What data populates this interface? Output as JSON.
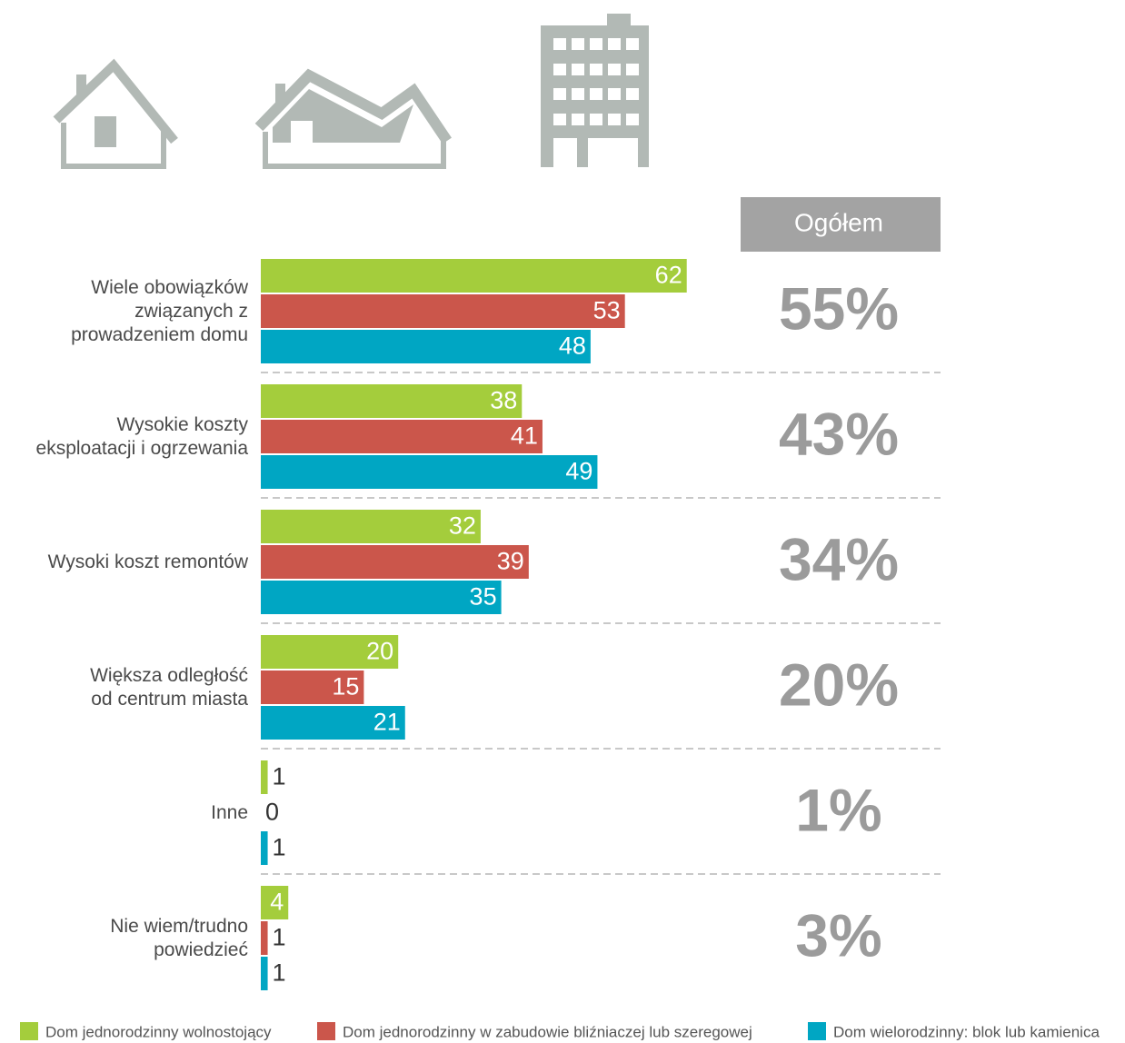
{
  "chart_data": {
    "type": "bar",
    "orientation": "horizontal",
    "categories": [
      "Wiele obowiązków\nzwiązanych z\nprowadzeniem domu",
      "Wysokie koszty\neksploatacji i ogrzewania",
      "Wysoki koszt remontów",
      "Większa odległość\nod centrum miasta",
      "Inne",
      "Nie wiem/trudno\npowiedzieć"
    ],
    "series": [
      {
        "name": "Dom jednorodzinny wolnostojący",
        "color": "#a4cd3c",
        "values": [
          62,
          38,
          32,
          20,
          1,
          4
        ]
      },
      {
        "name": "Dom jednorodzinny w zabudowie bliźniaczej lub szeregowej",
        "color": "#cb564b",
        "values": [
          53,
          41,
          39,
          15,
          0,
          1
        ]
      },
      {
        "name": "Dom wielorodzinny: blok lub kamienica",
        "color": "#00a6c3",
        "values": [
          48,
          49,
          35,
          21,
          1,
          1
        ]
      }
    ],
    "total": {
      "title": "Ogółem",
      "values": [
        55,
        43,
        34,
        20,
        1,
        3
      ],
      "value_labels": [
        "55%",
        "43%",
        "34%",
        "20%",
        "1%",
        "3%"
      ]
    }
  }
}
